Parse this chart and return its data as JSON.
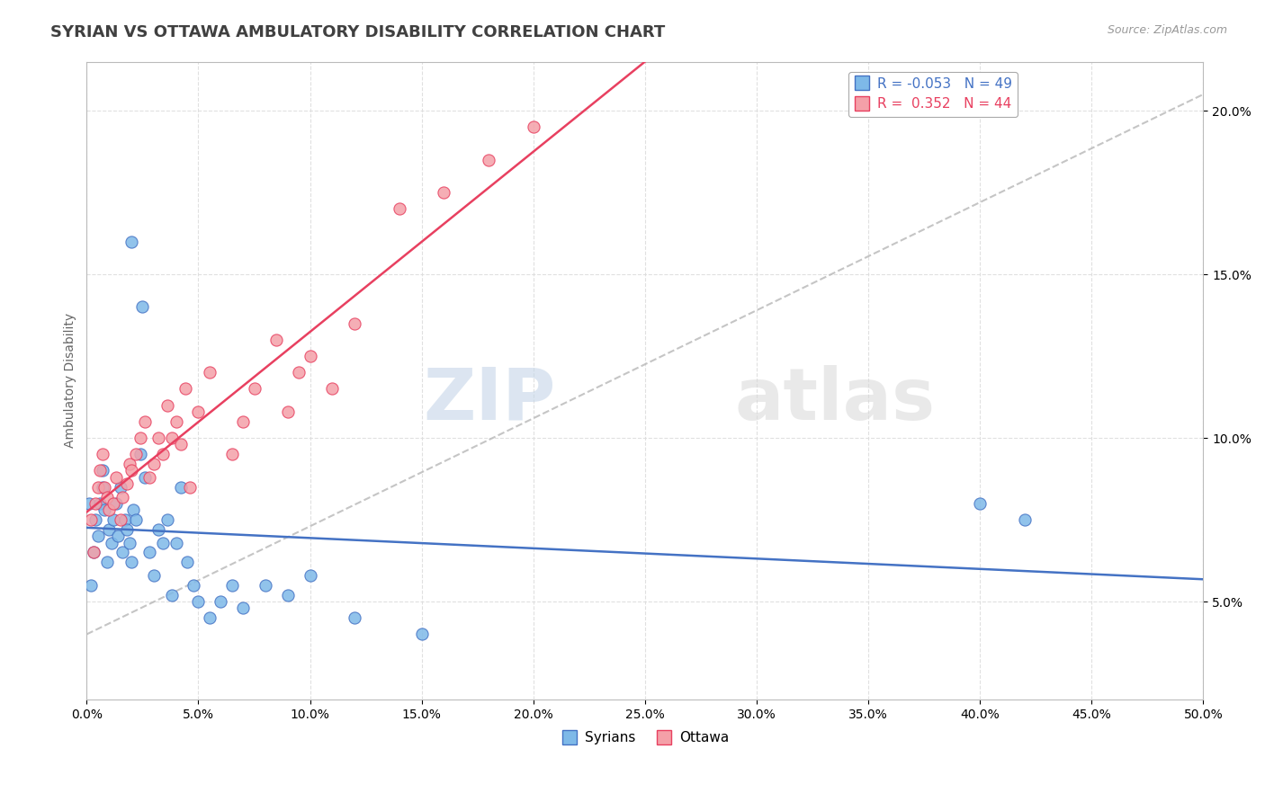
{
  "title": "SYRIAN VS OTTAWA AMBULATORY DISABILITY CORRELATION CHART",
  "source": "Source: ZipAtlas.com",
  "ylabel": "Ambulatory Disability",
  "xlim": [
    0,
    0.5
  ],
  "ylim": [
    0.02,
    0.215
  ],
  "color_syrians": "#7EB9E8",
  "color_ottawa": "#F4A0A8",
  "color_trend_syrians": "#4472C4",
  "color_trend_ottawa": "#E84060",
  "color_ref_line": "#BBBBBB",
  "syrians_x": [
    0.001,
    0.002,
    0.003,
    0.004,
    0.005,
    0.006,
    0.007,
    0.007,
    0.008,
    0.009,
    0.01,
    0.011,
    0.012,
    0.013,
    0.014,
    0.015,
    0.016,
    0.017,
    0.018,
    0.019,
    0.02,
    0.021,
    0.022,
    0.024,
    0.026,
    0.028,
    0.03,
    0.032,
    0.034,
    0.036,
    0.038,
    0.04,
    0.042,
    0.045,
    0.048,
    0.05,
    0.055,
    0.06,
    0.065,
    0.07,
    0.08,
    0.09,
    0.1,
    0.12,
    0.15,
    0.02,
    0.025,
    0.4,
    0.42
  ],
  "syrians_y": [
    0.08,
    0.055,
    0.065,
    0.075,
    0.07,
    0.08,
    0.085,
    0.09,
    0.078,
    0.062,
    0.072,
    0.068,
    0.075,
    0.08,
    0.07,
    0.085,
    0.065,
    0.075,
    0.072,
    0.068,
    0.062,
    0.078,
    0.075,
    0.095,
    0.088,
    0.065,
    0.058,
    0.072,
    0.068,
    0.075,
    0.052,
    0.068,
    0.085,
    0.062,
    0.055,
    0.05,
    0.045,
    0.05,
    0.055,
    0.048,
    0.055,
    0.052,
    0.058,
    0.045,
    0.04,
    0.16,
    0.14,
    0.08,
    0.075
  ],
  "ottawa_x": [
    0.002,
    0.003,
    0.004,
    0.005,
    0.006,
    0.007,
    0.008,
    0.009,
    0.01,
    0.012,
    0.013,
    0.015,
    0.016,
    0.018,
    0.019,
    0.02,
    0.022,
    0.024,
    0.026,
    0.028,
    0.03,
    0.032,
    0.034,
    0.036,
    0.038,
    0.04,
    0.042,
    0.044,
    0.046,
    0.05,
    0.055,
    0.065,
    0.07,
    0.075,
    0.085,
    0.09,
    0.095,
    0.1,
    0.11,
    0.12,
    0.14,
    0.16,
    0.18,
    0.2
  ],
  "ottawa_y": [
    0.075,
    0.065,
    0.08,
    0.085,
    0.09,
    0.095,
    0.085,
    0.082,
    0.078,
    0.08,
    0.088,
    0.075,
    0.082,
    0.086,
    0.092,
    0.09,
    0.095,
    0.1,
    0.105,
    0.088,
    0.092,
    0.1,
    0.095,
    0.11,
    0.1,
    0.105,
    0.098,
    0.115,
    0.085,
    0.108,
    0.12,
    0.095,
    0.105,
    0.115,
    0.13,
    0.108,
    0.12,
    0.125,
    0.115,
    0.135,
    0.17,
    0.175,
    0.185,
    0.195
  ],
  "watermark_zip": "ZIP",
  "watermark_atlas": "atlas",
  "background_color": "#FFFFFF",
  "grid_color": "#DDDDDD"
}
